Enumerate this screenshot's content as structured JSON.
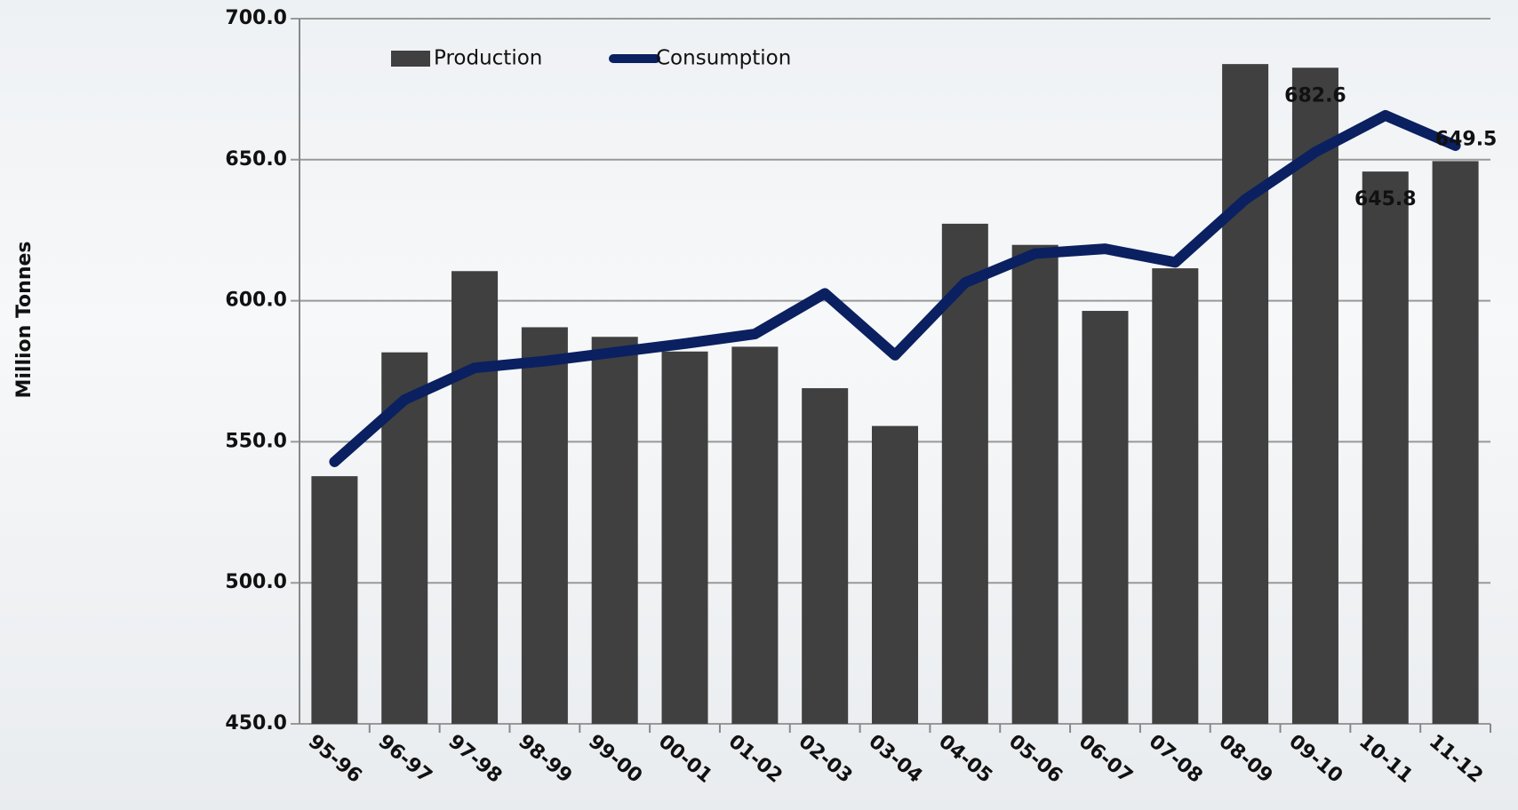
{
  "chart_data": {
    "type": "bar_line",
    "y_label": "Million Tonnes",
    "categories": [
      "95-96",
      "96-97",
      "97-98",
      "98-99",
      "99-00",
      "00-01",
      "01-02",
      "02-03",
      "03-04",
      "04-05",
      "05-06",
      "06-07",
      "07-08",
      "08-09",
      "09-10",
      "10-11",
      "11-12"
    ],
    "series": [
      {
        "name": "Production",
        "type": "bar",
        "color": "#404040",
        "values": [
          537.8,
          581.7,
          610.5,
          590.6,
          587.2,
          582,
          583.7,
          569,
          555.6,
          627.3,
          619.8,
          596.4,
          611.5,
          683.9,
          682.6,
          645.8,
          649.5
        ],
        "value_labels": [
          null,
          null,
          null,
          null,
          null,
          null,
          null,
          null,
          null,
          null,
          null,
          null,
          null,
          null,
          "682.6",
          "645.8",
          "649.5"
        ]
      },
      {
        "name": "Consumption",
        "type": "line",
        "color": "#0a2060",
        "values": [
          542.9,
          564.9,
          576.2,
          578.6,
          581.7,
          584.8,
          588.2,
          602.6,
          580.7,
          606.4,
          616.7,
          618.4,
          613.6,
          635.9,
          652.7,
          665.7,
          655
        ]
      }
    ],
    "ylim": [
      450,
      700
    ],
    "yticks": [
      {
        "value": 450,
        "label": "450.0"
      },
      {
        "value": 500,
        "label": "500.0"
      },
      {
        "value": 550,
        "label": "550.0"
      },
      {
        "value": 600,
        "label": "600.0"
      },
      {
        "value": 650,
        "label": "650.0"
      },
      {
        "value": 700,
        "label": "700.0"
      }
    ],
    "grid": true,
    "legend": "top-left"
  }
}
